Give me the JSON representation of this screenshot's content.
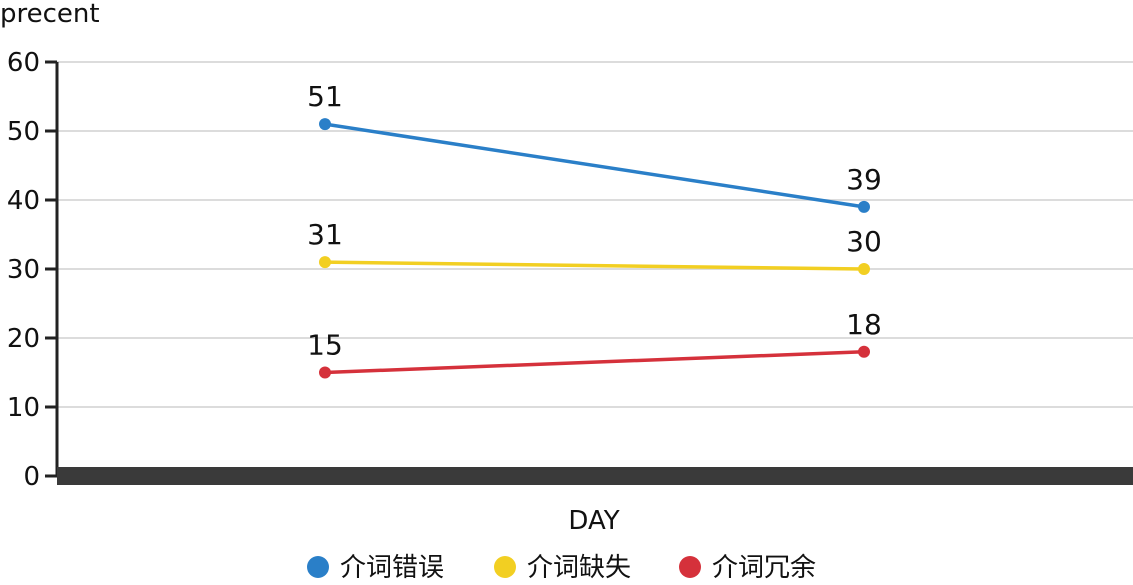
{
  "chart_data": {
    "type": "line",
    "xlabel": "DAY",
    "ylabel": "precent",
    "ylim": [
      0,
      60
    ],
    "yticks": [
      0,
      10,
      20,
      30,
      40,
      50,
      60
    ],
    "grid": true,
    "legend_position": "bottom",
    "x": [
      1,
      2
    ],
    "series": [
      {
        "name": "介词错误",
        "color": "#2a7fc8",
        "values": [
          51,
          39
        ],
        "labels": [
          "51",
          "39"
        ]
      },
      {
        "name": "介词缺失",
        "color": "#f2cf22",
        "values": [
          31,
          30
        ],
        "labels": [
          "31",
          "30"
        ]
      },
      {
        "name": "介词冗余",
        "color": "#d5313b",
        "values": [
          15,
          18
        ],
        "labels": [
          "15",
          "18"
        ]
      }
    ]
  }
}
